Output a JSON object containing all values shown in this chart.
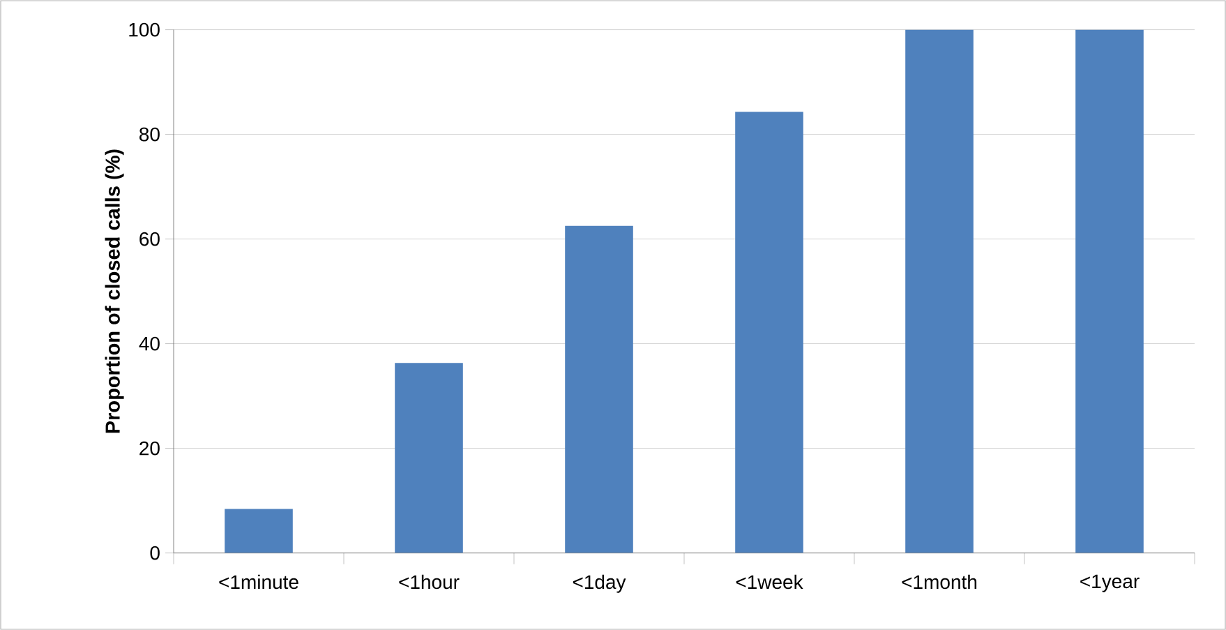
{
  "chart_data": {
    "type": "bar",
    "ylabel": "Proportion of closed calls (%)",
    "categories": [
      "<1minute",
      "<1hour",
      "<1day",
      "<1week",
      "<1month",
      "<1year"
    ],
    "values": [
      8.4,
      36.3,
      62.5,
      84.3,
      100,
      100
    ],
    "color": "#4f81bd",
    "ylim": [
      0,
      100
    ],
    "yticks": [
      0,
      20,
      40,
      60,
      80,
      100
    ],
    "grid": "y"
  }
}
